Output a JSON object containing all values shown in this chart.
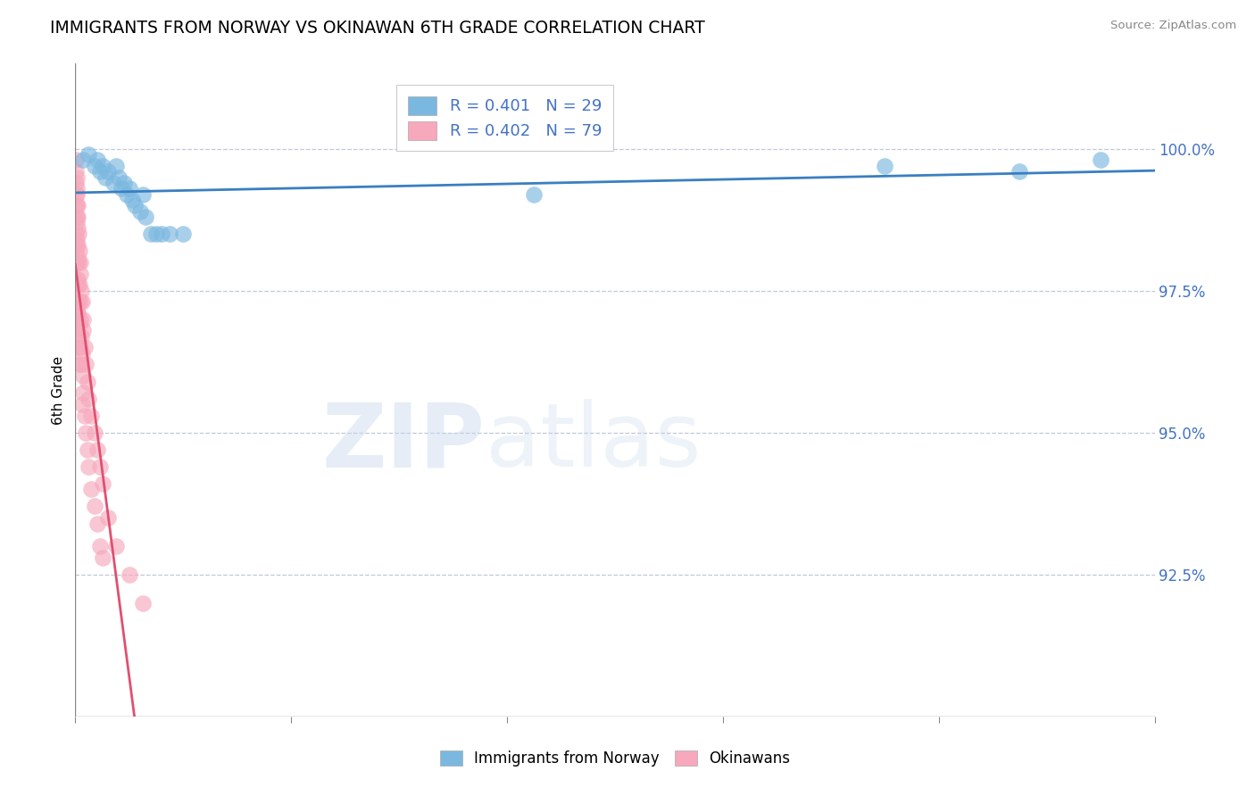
{
  "title": "IMMIGRANTS FROM NORWAY VS OKINAWAN 6TH GRADE CORRELATION CHART",
  "source_text": "Source: ZipAtlas.com",
  "ylabel": "6th Grade",
  "ylabel_right_ticks": [
    100.0,
    97.5,
    95.0,
    92.5
  ],
  "ylabel_right_labels": [
    "100.0%",
    "97.5%",
    "95.0%",
    "92.5%"
  ],
  "xlim": [
    0.0,
    40.0
  ],
  "ylim": [
    90.0,
    101.5
  ],
  "blue_color": "#7bb8e0",
  "pink_color": "#f7a8bc",
  "blue_line_color": "#3a7fc1",
  "pink_line_color": "#e05070",
  "legend_blue_label": "R = 0.401   N = 29",
  "legend_pink_label": "R = 0.402   N = 79",
  "blue_x": [
    0.3,
    0.5,
    0.7,
    0.8,
    0.9,
    1.0,
    1.1,
    1.2,
    1.4,
    1.5,
    1.6,
    1.7,
    1.8,
    1.9,
    2.0,
    2.1,
    2.2,
    2.4,
    2.5,
    2.6,
    2.8,
    3.0,
    3.2,
    3.5,
    4.0,
    17.0,
    30.0,
    35.0,
    38.0
  ],
  "blue_y": [
    99.8,
    99.9,
    99.7,
    99.8,
    99.6,
    99.7,
    99.5,
    99.6,
    99.4,
    99.7,
    99.5,
    99.3,
    99.4,
    99.2,
    99.3,
    99.1,
    99.0,
    98.9,
    99.2,
    98.8,
    98.5,
    98.5,
    98.5,
    98.5,
    98.5,
    99.2,
    99.7,
    99.6,
    99.8
  ],
  "pink_x": [
    0.02,
    0.02,
    0.02,
    0.02,
    0.02,
    0.02,
    0.02,
    0.02,
    0.04,
    0.04,
    0.04,
    0.04,
    0.04,
    0.04,
    0.04,
    0.04,
    0.06,
    0.06,
    0.06,
    0.06,
    0.06,
    0.06,
    0.06,
    0.08,
    0.08,
    0.08,
    0.08,
    0.08,
    0.08,
    0.1,
    0.1,
    0.1,
    0.1,
    0.1,
    0.12,
    0.12,
    0.12,
    0.12,
    0.15,
    0.15,
    0.15,
    0.15,
    0.18,
    0.18,
    0.18,
    0.2,
    0.2,
    0.2,
    0.22,
    0.22,
    0.25,
    0.25,
    0.25,
    0.28,
    0.28,
    0.3,
    0.3,
    0.35,
    0.35,
    0.4,
    0.4,
    0.45,
    0.45,
    0.5,
    0.5,
    0.6,
    0.6,
    0.7,
    0.7,
    0.8,
    0.8,
    0.9,
    0.9,
    1.0,
    1.0,
    1.2,
    1.5,
    2.0,
    2.5
  ],
  "pink_y": [
    99.8,
    99.6,
    99.4,
    99.2,
    99.0,
    98.8,
    98.5,
    98.2,
    99.5,
    99.3,
    99.0,
    98.7,
    98.3,
    98.0,
    97.7,
    97.3,
    99.2,
    98.8,
    98.4,
    98.0,
    97.6,
    97.2,
    96.8,
    99.0,
    98.6,
    98.1,
    97.6,
    97.1,
    96.5,
    98.8,
    98.3,
    97.7,
    97.1,
    96.5,
    98.5,
    98.0,
    97.3,
    96.7,
    98.2,
    97.6,
    96.9,
    96.2,
    98.0,
    97.3,
    96.5,
    97.8,
    97.0,
    96.2,
    97.5,
    96.7,
    97.3,
    96.4,
    95.5,
    97.0,
    96.0,
    96.8,
    95.7,
    96.5,
    95.3,
    96.2,
    95.0,
    95.9,
    94.7,
    95.6,
    94.4,
    95.3,
    94.0,
    95.0,
    93.7,
    94.7,
    93.4,
    94.4,
    93.0,
    94.1,
    92.8,
    93.5,
    93.0,
    92.5,
    92.0
  ]
}
